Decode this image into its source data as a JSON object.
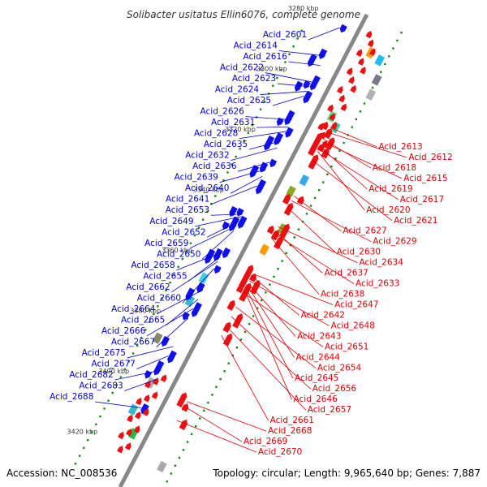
{
  "title": "Solibacter usitatus Ellin6076, complete genome",
  "footer": {
    "accession": "Accession: NC_008536",
    "topology": "Topology: circular; Length: 9,965,640 bp; Genes: 7,887"
  },
  "colors": {
    "forward_label": "#0000dd",
    "reverse_label": "#dd0000",
    "forward_gene": "#1010ee",
    "reverse_gene": "#ee1010",
    "backbone": "#888888",
    "tick": "#118811"
  },
  "kbp_ticks": [
    "3280 kbp",
    "3300 kbp",
    "3320 kbp",
    "3340 kbp",
    "3360 kbp",
    "3380 kbp",
    "3400 kbp",
    "3420 kbp"
  ],
  "forward_genes": [
    {
      "label": "Acid_2601",
      "t": 0.045
    },
    {
      "label": "Acid_2614",
      "t": 0.105
    },
    {
      "label": "Acid_2616",
      "t": 0.125
    },
    {
      "label": "Acid_2622",
      "t": 0.16
    },
    {
      "label": "Acid_2623",
      "t": 0.17
    },
    {
      "label": "Acid_2624",
      "t": 0.18
    },
    {
      "label": "Acid_2625",
      "t": 0.19
    },
    {
      "label": "Acid_2626",
      "t": 0.24
    },
    {
      "label": "Acid_2631",
      "t": 0.255
    },
    {
      "label": "Acid_2628",
      "t": 0.265
    },
    {
      "label": "Acid_2635",
      "t": 0.285
    },
    {
      "label": "Acid_2632",
      "t": 0.3
    },
    {
      "label": "Acid_2636",
      "t": 0.33
    },
    {
      "label": "Acid_2639",
      "t": 0.345
    },
    {
      "label": "Acid_2640",
      "t": 0.36
    },
    {
      "label": "Acid_2641",
      "t": 0.38
    },
    {
      "label": "Acid_2653",
      "t": 0.44
    },
    {
      "label": "Acid_2649",
      "t": 0.445
    },
    {
      "label": "Acid_2652",
      "t": 0.455
    },
    {
      "label": "Acid_2659",
      "t": 0.465
    },
    {
      "label": "Acid_2650",
      "t": 0.475
    },
    {
      "label": "Acid_2658",
      "t": 0.52
    },
    {
      "label": "Acid_2655",
      "t": 0.53
    },
    {
      "label": "Acid_2662",
      "t": 0.54
    },
    {
      "label": "Acid_2660",
      "t": 0.555
    },
    {
      "label": "Acid_2664",
      "t": 0.6
    },
    {
      "label": "Acid_2665",
      "t": 0.62
    },
    {
      "label": "Acid_2666",
      "t": 0.64
    },
    {
      "label": "Acid_2667",
      "t": 0.66
    },
    {
      "label": "Acid_2675",
      "t": 0.72
    },
    {
      "label": "Acid_2677",
      "t": 0.74
    },
    {
      "label": "Acid_2682",
      "t": 0.77
    },
    {
      "label": "Acid_2683",
      "t": 0.79
    },
    {
      "label": "Acid_2688",
      "t": 0.85
    }
  ],
  "reverse_genes": [
    {
      "label": "Acid_2613",
      "t": 0.22
    },
    {
      "label": "Acid_2612",
      "t": 0.23
    },
    {
      "label": "Acid_2618",
      "t": 0.245
    },
    {
      "label": "Acid_2615",
      "t": 0.25
    },
    {
      "label": "Acid_2619",
      "t": 0.26
    },
    {
      "label": "Acid_2617",
      "t": 0.265
    },
    {
      "label": "Acid_2620",
      "t": 0.27
    },
    {
      "label": "Acid_2621",
      "t": 0.29
    },
    {
      "label": "Acid_2627",
      "t": 0.365
    },
    {
      "label": "Acid_2629",
      "t": 0.375
    },
    {
      "label": "Acid_2630",
      "t": 0.39
    },
    {
      "label": "Acid_2634",
      "t": 0.43
    },
    {
      "label": "Acid_2637",
      "t": 0.44
    },
    {
      "label": "Acid_2633",
      "t": 0.445
    },
    {
      "label": "Acid_2638",
      "t": 0.455
    },
    {
      "label": "Acid_2647",
      "t": 0.53
    },
    {
      "label": "Acid_2642",
      "t": 0.535
    },
    {
      "label": "Acid_2648",
      "t": 0.545
    },
    {
      "label": "Acid_2643",
      "t": 0.55
    },
    {
      "label": "Acid_2651",
      "t": 0.57
    },
    {
      "label": "Acid_2644",
      "t": 0.555
    },
    {
      "label": "Acid_2654",
      "t": 0.6
    },
    {
      "label": "Acid_2645",
      "t": 0.56
    },
    {
      "label": "Acid_2656",
      "t": 0.62
    },
    {
      "label": "Acid_2646",
      "t": 0.565
    },
    {
      "label": "Acid_2657",
      "t": 0.64
    },
    {
      "label": "Acid_2661",
      "t": 0.66
    },
    {
      "label": "Acid_2668",
      "t": 0.8
    },
    {
      "label": "Acid_2669",
      "t": 0.81
    },
    {
      "label": "Acid_2670",
      "t": 0.84
    }
  ]
}
